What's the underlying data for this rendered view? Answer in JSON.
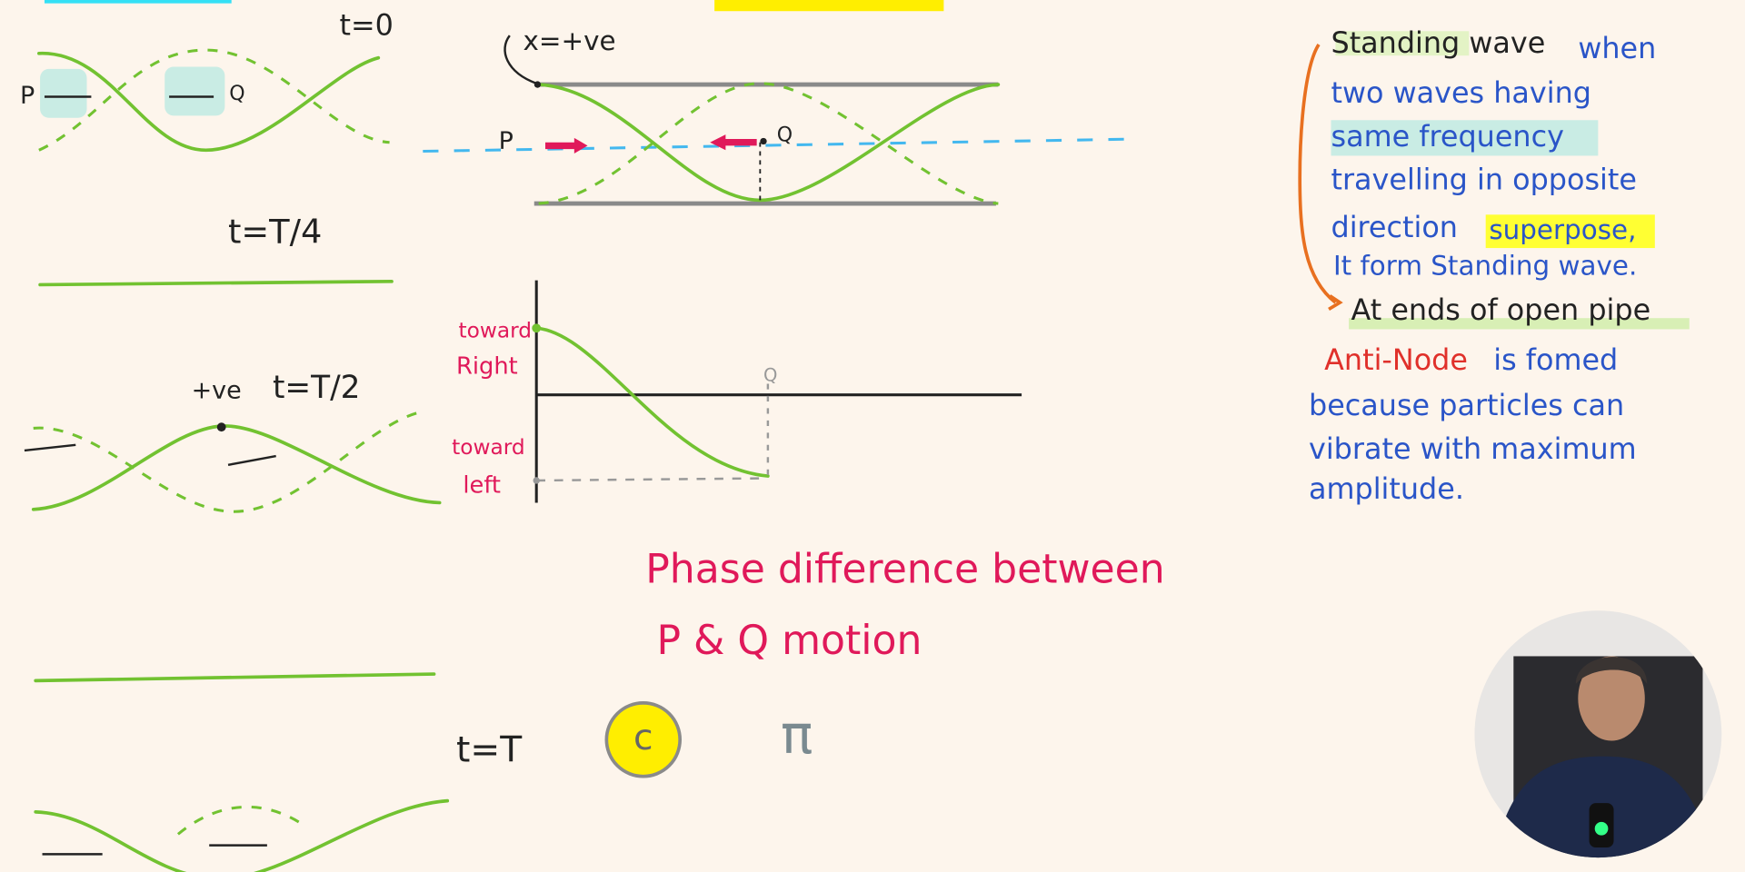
{
  "diagrams": {
    "t0": "t=0",
    "p": "P",
    "q": "Q",
    "t_quarter": "t=T/4",
    "plus_ve": "+ve",
    "t_half": "t=T/2",
    "t_full": "t=T"
  },
  "pipe": {
    "x_label": "x=+ve",
    "p": "P",
    "q": "Q"
  },
  "graph": {
    "right_label": [
      "toward",
      "Right"
    ],
    "left_label": [
      "toward",
      "left"
    ],
    "q": "Q"
  },
  "question": {
    "lines": [
      "Phase difference between",
      "P & Q motion"
    ],
    "answer_c": "c",
    "answer_pi": "π"
  },
  "notes": {
    "heading": "Standing wave",
    "lines": [
      "when",
      "two waves having",
      "same frequency",
      "travelling in opposite",
      "direction",
      "superpose,",
      "It form Standing wave."
    ],
    "pipe_ends": "At ends of open pipe",
    "antinode": "Anti-Node",
    "antinode_lines": [
      "is fomed",
      "because particles can",
      "vibrate with maximum",
      "amplitude."
    ]
  }
}
